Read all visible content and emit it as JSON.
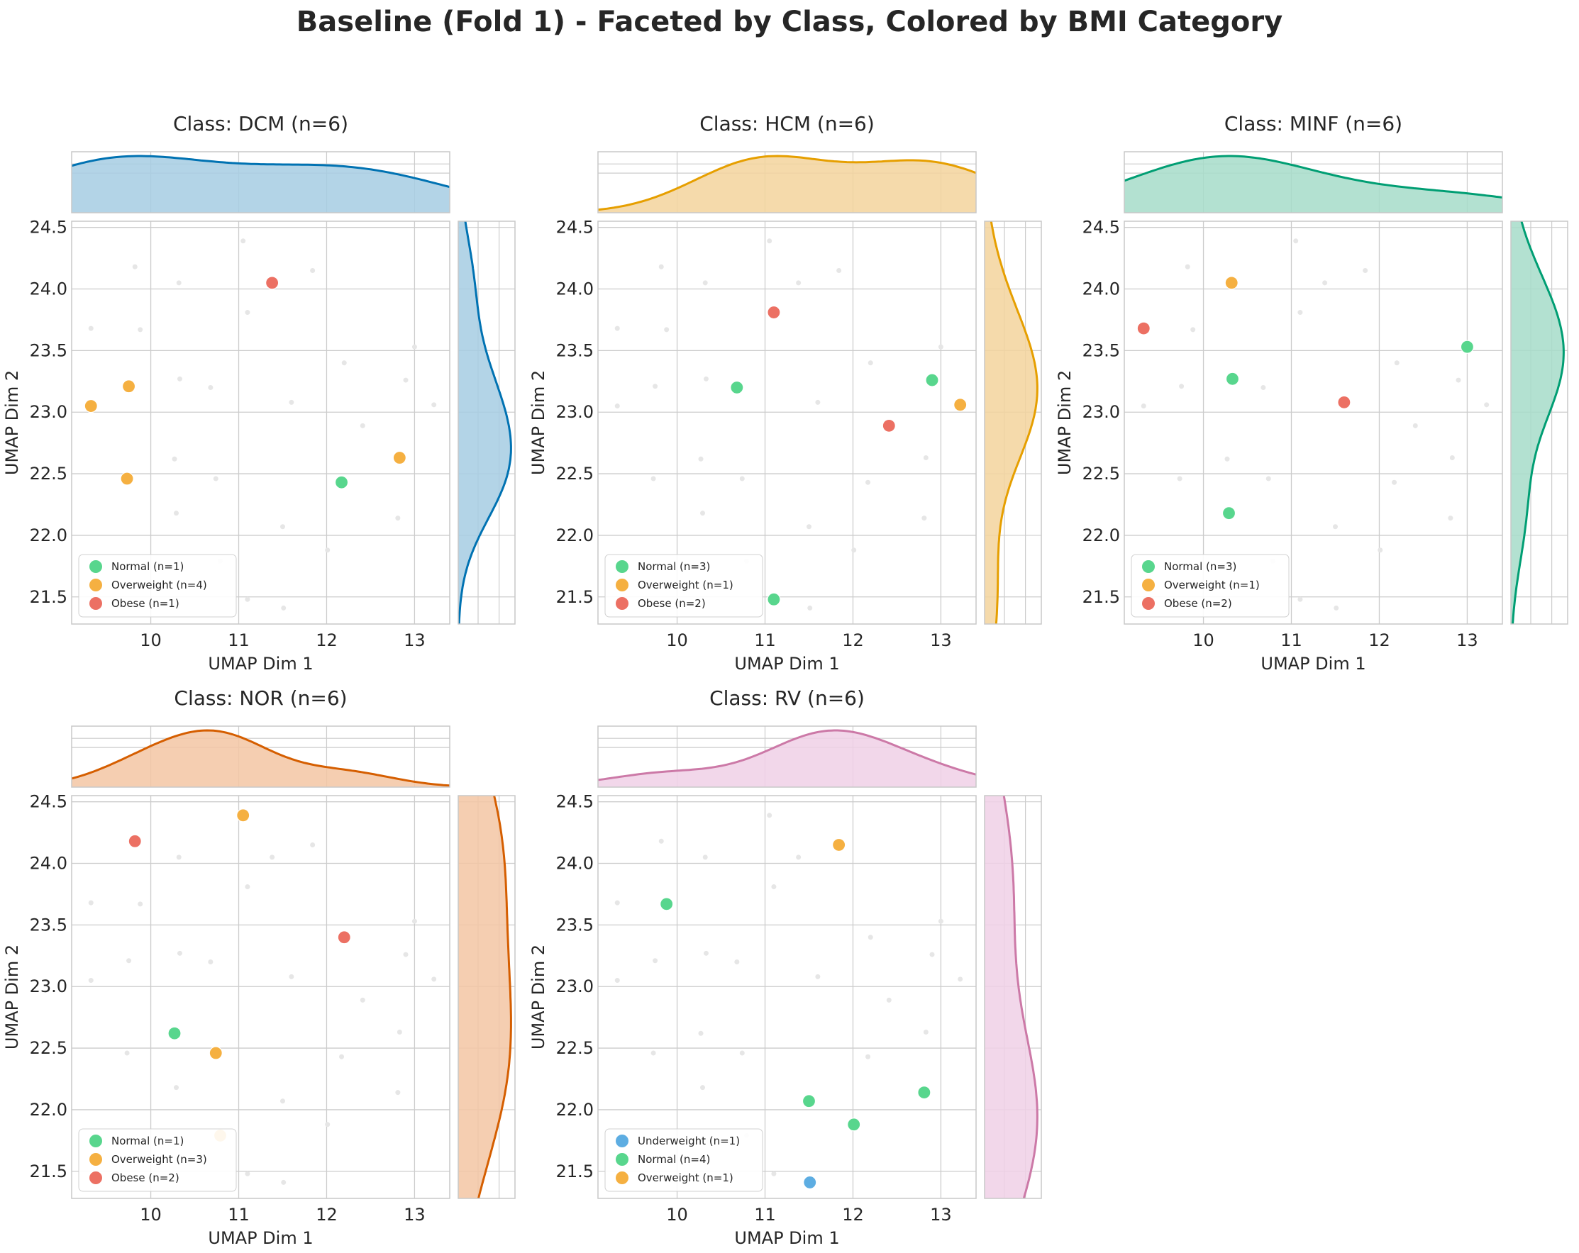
{
  "title": "Baseline (Fold 1) - Faceted by Class, Colored by BMI Category",
  "colors": {
    "Underweight": "#5dade2",
    "Normal": "#58d68d",
    "Overweight": "#f5b041",
    "Obese": "#ec7063",
    "background_points": "#e6e6e6",
    "grid": "#cccccc",
    "spine": "#c8c8c8"
  },
  "chart_data": [
    {
      "type": "scatter",
      "title": "Class: DCM (n=6)",
      "xlabel": "UMAP Dim 1",
      "ylabel": "UMAP Dim 2",
      "xlim": [
        9.1,
        13.4
      ],
      "ylim": [
        21.28,
        24.55
      ],
      "xticks": [
        "10",
        "11",
        "12",
        "13"
      ],
      "yticks": [
        "21.5",
        "22.0",
        "22.5",
        "23.0",
        "23.5",
        "24.0",
        "24.5"
      ],
      "kde_color": "#0072b2",
      "kde_fill": "#a6cde3",
      "legend": [
        "Normal (n=1)",
        "Overweight (n=4)",
        "Obese (n=1)"
      ],
      "series": [
        {
          "category": "Normal",
          "x": [
            12.17
          ],
          "y": [
            22.43
          ]
        },
        {
          "category": "Overweight",
          "x": [
            9.32,
            9.75,
            9.73,
            12.83
          ],
          "y": [
            23.05,
            23.21,
            22.46,
            22.63
          ]
        },
        {
          "category": "Obese",
          "x": [
            11.38
          ],
          "y": [
            24.05
          ]
        }
      ]
    },
    {
      "type": "scatter",
      "title": "Class: HCM (n=6)",
      "xlabel": "UMAP Dim 1",
      "ylabel": "UMAP Dim 2",
      "xlim": [
        9.1,
        13.4
      ],
      "ylim": [
        21.28,
        24.55
      ],
      "xticks": [
        "10",
        "11",
        "12",
        "13"
      ],
      "yticks": [
        "21.5",
        "22.0",
        "22.5",
        "23.0",
        "23.5",
        "24.0",
        "24.5"
      ],
      "kde_color": "#e69f00",
      "kde_fill": "#f3d49c",
      "legend": [
        "Normal (n=3)",
        "Overweight (n=1)",
        "Obese (n=2)"
      ],
      "series": [
        {
          "category": "Normal",
          "x": [
            10.68,
            12.9,
            11.1
          ],
          "y": [
            23.2,
            23.26,
            21.48
          ]
        },
        {
          "category": "Overweight",
          "x": [
            13.22
          ],
          "y": [
            23.06
          ]
        },
        {
          "category": "Obese",
          "x": [
            11.1,
            12.41
          ],
          "y": [
            23.81,
            22.89
          ]
        }
      ]
    },
    {
      "type": "scatter",
      "title": "Class: MINF (n=6)",
      "xlabel": "UMAP Dim 1",
      "ylabel": "UMAP Dim 2",
      "xlim": [
        9.1,
        13.4
      ],
      "ylim": [
        21.28,
        24.55
      ],
      "xticks": [
        "10",
        "11",
        "12",
        "13"
      ],
      "yticks": [
        "21.5",
        "22.0",
        "22.5",
        "23.0",
        "23.5",
        "24.0",
        "24.5"
      ],
      "kde_color": "#009e73",
      "kde_fill": "#a6dcc9",
      "legend": [
        "Normal (n=3)",
        "Overweight (n=1)",
        "Obese (n=2)"
      ],
      "series": [
        {
          "category": "Normal",
          "x": [
            10.33,
            10.29,
            13.0
          ],
          "y": [
            23.27,
            22.18,
            23.53
          ]
        },
        {
          "category": "Overweight",
          "x": [
            10.32
          ],
          "y": [
            24.05
          ]
        },
        {
          "category": "Obese",
          "x": [
            9.32,
            11.6
          ],
          "y": [
            23.68,
            23.08
          ]
        }
      ]
    },
    {
      "type": "scatter",
      "title": "Class: NOR (n=6)",
      "xlabel": "UMAP Dim 1",
      "ylabel": "UMAP Dim 2",
      "xlim": [
        9.1,
        13.4
      ],
      "ylim": [
        21.28,
        24.55
      ],
      "xticks": [
        "10",
        "11",
        "12",
        "13"
      ],
      "yticks": [
        "21.5",
        "22.0",
        "22.5",
        "23.0",
        "23.5",
        "24.0",
        "24.5"
      ],
      "kde_color": "#d55e00",
      "kde_fill": "#f3c6a3",
      "legend": [
        "Normal (n=1)",
        "Overweight (n=3)",
        "Obese (n=2)"
      ],
      "series": [
        {
          "category": "Normal",
          "x": [
            10.27
          ],
          "y": [
            22.62
          ]
        },
        {
          "category": "Overweight",
          "x": [
            11.05,
            10.74,
            10.79
          ],
          "y": [
            24.39,
            22.46,
            21.79
          ]
        },
        {
          "category": "Obese",
          "x": [
            9.82,
            12.2
          ],
          "y": [
            24.18,
            23.4
          ]
        }
      ]
    },
    {
      "type": "scatter",
      "title": "Class: RV (n=6)",
      "xlabel": "UMAP Dim 1",
      "ylabel": "UMAP Dim 2",
      "xlim": [
        9.1,
        13.4
      ],
      "ylim": [
        21.28,
        24.55
      ],
      "xticks": [
        "10",
        "11",
        "12",
        "13"
      ],
      "yticks": [
        "21.5",
        "22.0",
        "22.5",
        "23.0",
        "23.5",
        "24.0",
        "24.5"
      ],
      "kde_color": "#cc79a7",
      "kde_fill": "#f0d0e6",
      "legend": [
        "Underweight (n=1)",
        "Normal (n=4)",
        "Overweight (n=1)"
      ],
      "series": [
        {
          "category": "Underweight",
          "x": [
            11.51
          ],
          "y": [
            21.41
          ]
        },
        {
          "category": "Normal",
          "x": [
            9.88,
            11.5,
            12.01,
            12.81
          ],
          "y": [
            23.67,
            22.07,
            21.88,
            22.14
          ]
        },
        {
          "category": "Overweight",
          "x": [
            11.84
          ],
          "y": [
            24.15
          ]
        }
      ]
    }
  ],
  "background_points": {
    "x": [
      9.32,
      9.75,
      9.73,
      12.83,
      12.17,
      11.38,
      10.68,
      12.9,
      11.1,
      13.22,
      11.1,
      12.41,
      10.33,
      10.29,
      13.0,
      10.32,
      9.32,
      11.6,
      10.27,
      11.05,
      10.74,
      10.79,
      9.82,
      12.2,
      11.51,
      9.88,
      11.5,
      12.01,
      12.81,
      11.84
    ],
    "y": [
      23.05,
      23.21,
      22.46,
      22.63,
      22.43,
      24.05,
      23.2,
      23.26,
      21.48,
      23.06,
      23.81,
      22.89,
      23.27,
      22.18,
      23.53,
      24.05,
      23.68,
      23.08,
      22.62,
      24.39,
      22.46,
      21.79,
      24.18,
      23.4,
      21.41,
      23.67,
      22.07,
      21.88,
      22.14,
      24.15
    ]
  }
}
